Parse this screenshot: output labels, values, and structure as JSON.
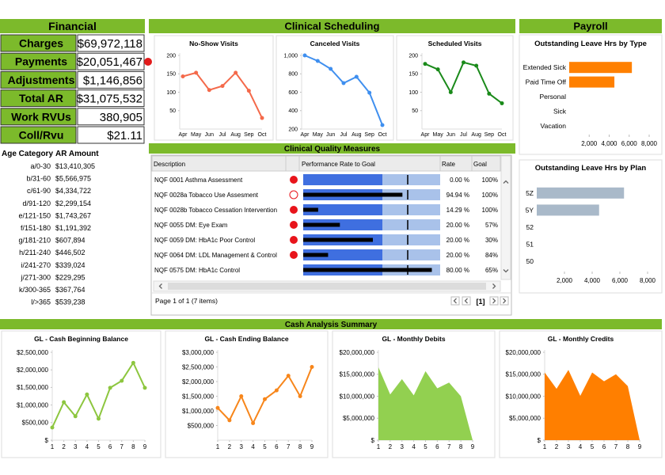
{
  "financial": {
    "title": "Financial",
    "rows": [
      {
        "label": "Charges",
        "value": "$69,972,118"
      },
      {
        "label": "Payments",
        "value": "$20,051,467"
      },
      {
        "label": "Adjustments",
        "value": "$1,146,856"
      },
      {
        "label": "Total AR",
        "value": "$31,075,532"
      },
      {
        "label": "Work RVUs",
        "value": "380,905"
      },
      {
        "label": "Coll/Rvu",
        "value": "$21.11"
      }
    ]
  },
  "age_table": {
    "headers": [
      "Age Category",
      "AR Amount"
    ],
    "rows": [
      [
        "a/0-30",
        "$13,410,305"
      ],
      [
        "b/31-60",
        "$5,566,975"
      ],
      [
        "c/61-90",
        "$4,334,722"
      ],
      [
        "d/91-120",
        "$2,299,154"
      ],
      [
        "e/121-150",
        "$1,743,267"
      ],
      [
        "f/151-180",
        "$1,191,392"
      ],
      [
        "g/181-210",
        "$607,894"
      ],
      [
        "h/211-240",
        "$446,502"
      ],
      [
        "i/241-270",
        "$339,024"
      ],
      [
        "j/271-300",
        "$229,295"
      ],
      [
        "k/300-365",
        "$367,764"
      ],
      [
        "l/>365",
        "$539,238"
      ]
    ]
  },
  "clinical_scheduling": {
    "title": "Clinical Scheduling",
    "charts": [
      {
        "type": "line",
        "title": "No-Show Visits",
        "categories": [
          "Apr",
          "May",
          "Jun",
          "Jul",
          "Aug",
          "Sep",
          "Oct"
        ],
        "values": [
          143,
          153,
          106,
          117,
          153,
          104,
          30
        ],
        "color": "#f4694a",
        "ylim": [
          0,
          200
        ],
        "yticks": [
          50,
          100,
          150,
          200
        ]
      },
      {
        "type": "line",
        "title": "Canceled Visits",
        "categories": [
          "Apr",
          "May",
          "Jun",
          "Jul",
          "Aug",
          "Sep",
          "Oct"
        ],
        "values": [
          1000,
          940,
          854,
          699,
          768,
          595,
          243
        ],
        "color": "#3f8fef",
        "ylim": [
          200,
          1000
        ],
        "yticks": [
          200,
          400,
          600,
          800,
          {
            "value": 1000,
            "label": "1,000"
          }
        ]
      },
      {
        "type": "line",
        "title": "Scheduled Visits",
        "categories": [
          "Apr",
          "May",
          "Jun",
          "Jul",
          "Aug",
          "Sep",
          "Oct"
        ],
        "values": [
          177,
          162,
          100,
          181,
          172,
          96,
          70
        ],
        "color": "#1a8a1a",
        "ylim": [
          0,
          200
        ],
        "yticks": [
          50,
          100,
          150,
          200
        ]
      }
    ]
  },
  "payroll": {
    "title": "Payroll",
    "charts": [
      {
        "type": "hbar",
        "title": "Outstanding Leave Hrs by Type",
        "categories": [
          "Extended Sick",
          "Paid Time Off",
          "Personal",
          "Sick",
          "Vacation"
        ],
        "values": [
          6270,
          4520,
          0,
          0,
          0
        ],
        "color": "#ff8000",
        "xlim": [
          0,
          8000
        ],
        "xticks": [
          {
            "value": 2000,
            "label": "2,000"
          },
          {
            "value": 4000,
            "label": "4,000"
          },
          {
            "value": 6000,
            "label": "6,000"
          },
          {
            "value": 8000,
            "label": "8,000"
          }
        ]
      },
      {
        "type": "hbar",
        "title": "Outstanding Leave Hrs by Plan",
        "categories": [
          "5Z",
          "5Y",
          "52",
          "51",
          "50"
        ],
        "values": [
          6300,
          4500,
          0,
          0,
          0
        ],
        "color": "#a9b9c9",
        "xlim": [
          0,
          8000
        ],
        "xticks": [
          {
            "value": 2000,
            "label": "2,000"
          },
          {
            "value": 4000,
            "label": "4,000"
          },
          {
            "value": 6000,
            "label": "6,000"
          },
          {
            "value": 8000,
            "label": "8,000"
          }
        ]
      }
    ]
  },
  "quality": {
    "title": "Clinical Quality Measures",
    "columns": [
      "Description",
      "Performance Rate to Goal",
      "Rate",
      "Goal"
    ],
    "rows": [
      {
        "description": "NQF 0001 Asthma Assessment",
        "rate": {
          "value": 0,
          "label": "0.00 %"
        },
        "goal": {
          "value": 100,
          "label": "100%"
        }
      },
      {
        "description": "NQF 0028a Tobacco Use Assesment",
        "rate": {
          "value": 94.94,
          "label": "94.94 %"
        },
        "goal": {
          "value": 100,
          "label": "100%"
        }
      },
      {
        "description": "NQF 0028b Tobacco Cessation Intervention",
        "rate": {
          "value": 14.29,
          "label": "14.29 %"
        },
        "goal": {
          "value": 100,
          "label": "100%"
        }
      },
      {
        "description": "NQF 0055 DM: Eye Exam",
        "rate": {
          "value": 20,
          "label": "20.00 %"
        },
        "goal": {
          "value": 57,
          "label": "57%"
        }
      },
      {
        "description": "NQF 0059 DM: HbA1c Poor Control",
        "rate": {
          "value": 20,
          "label": "20.00 %"
        },
        "goal": {
          "value": 30,
          "label": "30%"
        }
      },
      {
        "description": "NQF 0064 DM: LDL Management & Control",
        "rate": {
          "value": 20,
          "label": "20.00 %"
        },
        "goal": {
          "value": 84,
          "label": "84%"
        }
      },
      {
        "description": "NQF 0575 DM: HbA1c Control",
        "rate": {
          "value": 80,
          "label": "80.00 %"
        },
        "goal": {
          "value": 65,
          "label": "65%"
        }
      }
    ],
    "pager": "Page 1 of 1 (7 items)",
    "current_page": "[1]"
  },
  "cash": {
    "title": "Cash Analysis Summary",
    "charts": [
      {
        "type": "line",
        "title": "GL - Cash Beginning Balance",
        "x": [
          1,
          2,
          3,
          4,
          5,
          6,
          7,
          8,
          9
        ],
        "values": [
          360000,
          1080000,
          680000,
          1300000,
          610000,
          1490000,
          1690000,
          2200000,
          1490000
        ],
        "color": "#8dc63f",
        "xlim": [
          1,
          9
        ],
        "xticks": [
          1,
          2,
          3,
          4,
          5,
          6,
          7,
          8,
          9
        ],
        "ylim": [
          0,
          2500000
        ],
        "yticks": [
          {
            "value": 0,
            "label": "$"
          },
          {
            "value": 500000,
            "label": "$500,000"
          },
          {
            "value": 1000000,
            "label": "$1,000,000"
          },
          {
            "value": 1500000,
            "label": "$1,500,000"
          },
          {
            "value": 2000000,
            "label": "$2,000,000"
          },
          {
            "value": 2500000,
            "label": "$2,500,000"
          }
        ]
      },
      {
        "type": "line",
        "title": "GL - Cash Ending Balance",
        "x": [
          1,
          2,
          3,
          4,
          5,
          6,
          7,
          8,
          9
        ],
        "values": [
          1100000,
          680000,
          1500000,
          580000,
          1400000,
          1700000,
          2200000,
          1500000,
          2500000
        ],
        "color": "#f7861b",
        "xlim": [
          1,
          9
        ],
        "xticks": [
          1,
          2,
          3,
          4,
          5,
          6,
          7,
          8,
          9
        ],
        "ylim": [
          0,
          3000000
        ],
        "yticks": [
          {
            "value": 500000,
            "label": "$500,000"
          },
          {
            "value": 1000000,
            "label": "$1,000,000"
          },
          {
            "value": 1500000,
            "label": "$1,500,000"
          },
          {
            "value": 2000000,
            "label": "$2,000,000"
          },
          {
            "value": 2500000,
            "label": "$2,500,000"
          },
          {
            "value": 3000000,
            "label": "$3,000,000"
          }
        ]
      },
      {
        "type": "area",
        "title": "GL - Monthly Debits",
        "x": [
          1,
          2,
          3,
          4,
          5,
          6,
          7,
          8,
          9
        ],
        "values": [
          16600000,
          10400000,
          13900000,
          10200000,
          15700000,
          11800000,
          13100000,
          10000000,
          0
        ],
        "color": "#92d050",
        "xlim": [
          1,
          9
        ],
        "xticks": [
          1,
          2,
          3,
          4,
          5,
          6,
          7,
          8,
          9
        ],
        "ylim": [
          0,
          20000000
        ],
        "yticks": [
          {
            "value": 0,
            "label": "$"
          },
          {
            "value": 5000000,
            "label": "$5,000,000"
          },
          {
            "value": 10000000,
            "label": "$10,000,000"
          },
          {
            "value": 15000000,
            "label": "$15,000,000"
          },
          {
            "value": 20000000,
            "label": "$20,000,000"
          }
        ]
      },
      {
        "type": "area",
        "title": "GL - Monthly Credits",
        "x": [
          1,
          2,
          3,
          4,
          5,
          6,
          7,
          8,
          9
        ],
        "values": [
          15400000,
          11700000,
          16000000,
          10100000,
          15400000,
          13400000,
          15000000,
          12300000,
          0
        ],
        "color": "#ff7f00",
        "xlim": [
          1,
          9
        ],
        "xticks": [
          1,
          2,
          3,
          4,
          5,
          6,
          7,
          8,
          9
        ],
        "ylim": [
          0,
          20000000
        ],
        "yticks": [
          {
            "value": 0,
            "label": "$"
          },
          {
            "value": 5000000,
            "label": "$5,000,000"
          },
          {
            "value": 10000000,
            "label": "$10,000,000"
          },
          {
            "value": 15000000,
            "label": "$15,000,000"
          },
          {
            "value": 20000000,
            "label": "$20,000,000"
          }
        ]
      }
    ]
  }
}
